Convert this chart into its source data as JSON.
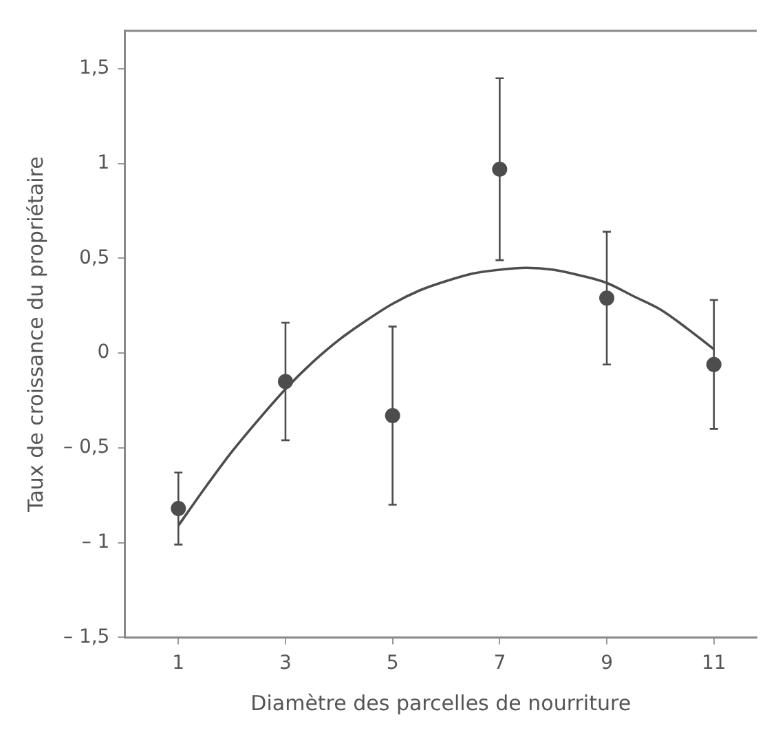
{
  "chart_data": {
    "type": "scatter",
    "xlabel": "Diamètre des parcelles de nourriture",
    "ylabel": "Taux de croissance du propriétaire",
    "x": [
      1,
      3,
      5,
      7,
      9,
      11
    ],
    "xlim": [
      0,
      11.8
    ],
    "xticks": [
      1,
      3,
      5,
      7,
      9,
      11
    ],
    "ylim": [
      -1.5,
      1.7
    ],
    "yticks": [
      {
        "value": -1.5,
        "label": "– 1,5"
      },
      {
        "value": -1,
        "label": "– 1"
      },
      {
        "value": -0.5,
        "label": "– 0,5"
      },
      0,
      {
        "value": 0.5,
        "label": "0,5"
      },
      1,
      {
        "value": 1.5,
        "label": "1,5"
      }
    ],
    "grid": false,
    "legend": false,
    "series": [
      {
        "color": "#4d4d4d",
        "marker": "circle",
        "values": [
          -0.82,
          -0.15,
          -0.33,
          0.97,
          0.29,
          -0.06
        ],
        "errors": [
          0.19,
          0.31,
          0.47,
          0.48,
          0.35,
          0.34
        ]
      },
      {
        "type": "line",
        "color": "#4d4d4d",
        "marker": "none",
        "line_style": "solid",
        "x": [
          1,
          1.5,
          2,
          2.5,
          3,
          3.5,
          4,
          4.5,
          5,
          5.5,
          6,
          6.5,
          7,
          7.5,
          8,
          8.5,
          9,
          9.5,
          10,
          10.5,
          11
        ],
        "values": [
          -0.91,
          -0.71,
          -0.52,
          -0.35,
          -0.19,
          -0.05,
          0.07,
          0.17,
          0.26,
          0.33,
          0.38,
          0.42,
          0.44,
          0.45,
          0.44,
          0.41,
          0.37,
          0.3,
          0.23,
          0.13,
          0.02
        ]
      }
    ]
  }
}
